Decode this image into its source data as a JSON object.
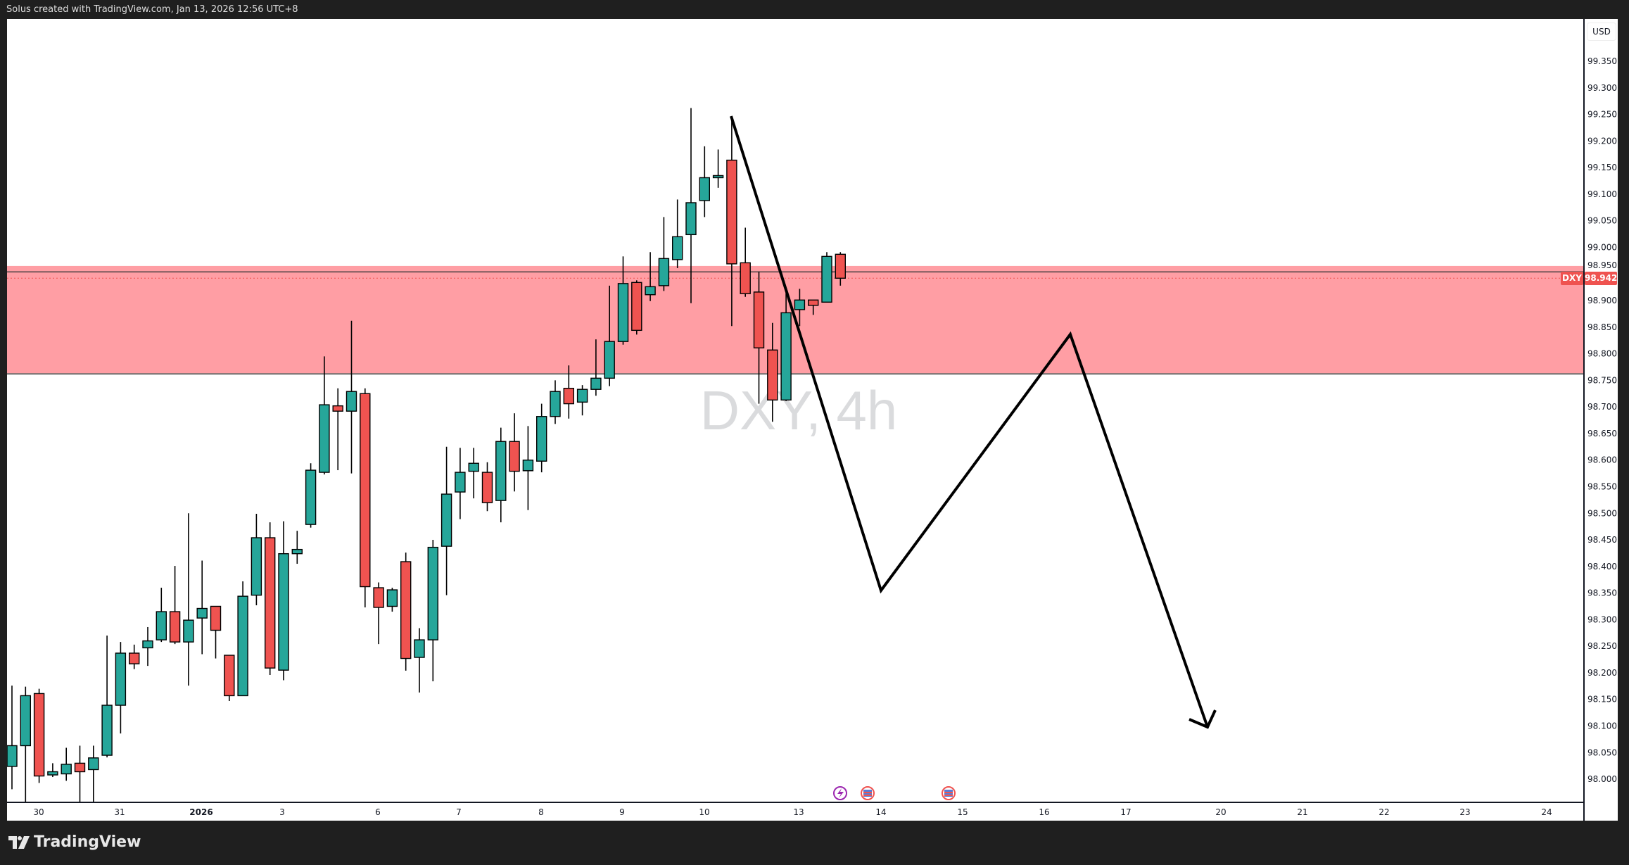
{
  "header": {
    "caption": "Solus created with TradingView.com, Jan 13, 2026 12:56 UTC+8"
  },
  "footer": {
    "brand": "TradingView"
  },
  "price_axis": {
    "currency": "USD"
  },
  "symbol_badge": {
    "symbol": "DXY",
    "price": "98.942"
  },
  "watermark": "DXY, 4h",
  "colors": {
    "up": "#26a69a",
    "down": "#ef5350",
    "zone": "#ff9ea4",
    "drawing": "#000000",
    "watermark": "#dadbdd"
  },
  "event_icons": [
    "lightning-event-icon",
    "us-flag-event-icon",
    "us-flag-event-icon"
  ],
  "chart_data": {
    "type": "candlestick",
    "symbol": "DXY",
    "interval": "4h",
    "currency": "USD",
    "last_price": 98.942,
    "ylim": [
      97.97,
      99.42
    ],
    "y_ticks": [
      "99.350",
      "99.300",
      "99.250",
      "99.200",
      "99.150",
      "99.100",
      "99.050",
      "99.000",
      "98.950",
      "98.900",
      "98.850",
      "98.800",
      "98.750",
      "98.700",
      "98.650",
      "98.600",
      "98.550",
      "98.500",
      "98.450",
      "98.400",
      "98.350",
      "98.300",
      "98.250",
      "98.200",
      "98.150",
      "98.100",
      "98.050",
      "98.000"
    ],
    "x_ticks": [
      "30",
      "31",
      "2026",
      "3",
      "6",
      "7",
      "8",
      "9",
      "10",
      "13",
      "14",
      "15",
      "16",
      "17",
      "20",
      "21",
      "22",
      "23",
      "24"
    ],
    "zone": {
      "top": 98.965,
      "line": 98.954,
      "bottom": 98.762
    },
    "ohlc_columns": [
      "open",
      "high",
      "low",
      "close"
    ],
    "ohlc": [
      [
        98.024,
        98.176,
        97.981,
        98.063
      ],
      [
        98.063,
        98.174,
        97.957,
        98.157
      ],
      [
        98.161,
        98.17,
        97.993,
        98.006
      ],
      [
        98.008,
        98.03,
        98.004,
        98.014
      ],
      [
        98.01,
        98.059,
        97.997,
        98.028
      ],
      [
        98.03,
        98.063,
        97.957,
        98.014
      ],
      [
        98.018,
        98.063,
        97.957,
        98.04
      ],
      [
        98.045,
        98.27,
        98.041,
        98.139
      ],
      [
        98.139,
        98.258,
        98.086,
        98.237
      ],
      [
        98.237,
        98.253,
        98.207,
        98.217
      ],
      [
        98.247,
        98.286,
        98.213,
        98.26
      ],
      [
        98.262,
        98.36,
        98.258,
        98.315
      ],
      [
        98.315,
        98.401,
        98.254,
        98.258
      ],
      [
        98.258,
        98.5,
        98.176,
        98.299
      ],
      [
        98.303,
        98.411,
        98.235,
        98.321
      ],
      [
        98.325,
        98.325,
        98.227,
        98.28
      ],
      [
        98.233,
        98.233,
        98.147,
        98.157
      ],
      [
        98.157,
        98.372,
        98.157,
        98.344
      ],
      [
        98.346,
        98.499,
        98.327,
        98.454
      ],
      [
        98.454,
        98.483,
        98.196,
        98.209
      ],
      [
        98.205,
        98.485,
        98.186,
        98.424
      ],
      [
        98.424,
        98.467,
        98.405,
        98.432
      ],
      [
        98.479,
        98.594,
        98.473,
        98.581
      ],
      [
        98.577,
        98.795,
        98.573,
        98.704
      ],
      [
        98.702,
        98.735,
        98.581,
        98.692
      ],
      [
        98.692,
        98.862,
        98.575,
        98.729
      ],
      [
        98.725,
        98.735,
        98.323,
        98.362
      ],
      [
        98.36,
        98.37,
        98.254,
        98.323
      ],
      [
        98.325,
        98.36,
        98.315,
        98.356
      ],
      [
        98.409,
        98.426,
        98.204,
        98.227
      ],
      [
        98.229,
        98.284,
        98.163,
        98.262
      ],
      [
        98.262,
        98.45,
        98.184,
        98.436
      ],
      [
        98.438,
        98.625,
        98.346,
        98.536
      ],
      [
        98.54,
        98.623,
        98.489,
        98.577
      ],
      [
        98.579,
        98.623,
        98.528,
        98.594
      ],
      [
        98.577,
        98.596,
        98.504,
        98.52
      ],
      [
        98.524,
        98.661,
        98.483,
        98.635
      ],
      [
        98.635,
        98.688,
        98.541,
        98.579
      ],
      [
        98.58,
        98.664,
        98.506,
        98.6
      ],
      [
        98.598,
        98.706,
        98.577,
        98.682
      ],
      [
        98.682,
        98.75,
        98.668,
        98.729
      ],
      [
        98.735,
        98.778,
        98.678,
        98.706
      ],
      [
        98.709,
        98.741,
        98.684,
        98.733
      ],
      [
        98.733,
        98.827,
        98.721,
        98.754
      ],
      [
        98.754,
        98.928,
        98.739,
        98.823
      ],
      [
        98.823,
        98.983,
        98.817,
        98.932
      ],
      [
        98.934,
        98.938,
        98.836,
        98.844
      ],
      [
        98.911,
        98.991,
        98.899,
        98.926
      ],
      [
        98.928,
        99.057,
        98.918,
        98.979
      ],
      [
        98.977,
        99.09,
        98.961,
        99.02
      ],
      [
        99.024,
        99.262,
        98.895,
        99.084
      ],
      [
        99.088,
        99.19,
        99.057,
        99.131
      ],
      [
        99.131,
        99.184,
        99.112,
        99.135
      ],
      [
        99.164,
        99.245,
        98.852,
        98.969
      ],
      [
        98.971,
        99.037,
        98.907,
        98.913
      ],
      [
        98.916,
        98.954,
        98.706,
        98.811
      ],
      [
        98.807,
        98.858,
        98.672,
        98.713
      ],
      [
        98.713,
        98.914,
        98.711,
        98.877
      ],
      [
        98.883,
        98.922,
        98.852,
        98.901
      ],
      [
        98.901,
        98.901,
        98.873,
        98.891
      ],
      [
        98.897,
        98.991,
        98.897,
        98.983
      ],
      [
        98.987,
        98.991,
        98.928,
        98.942
      ]
    ]
  }
}
